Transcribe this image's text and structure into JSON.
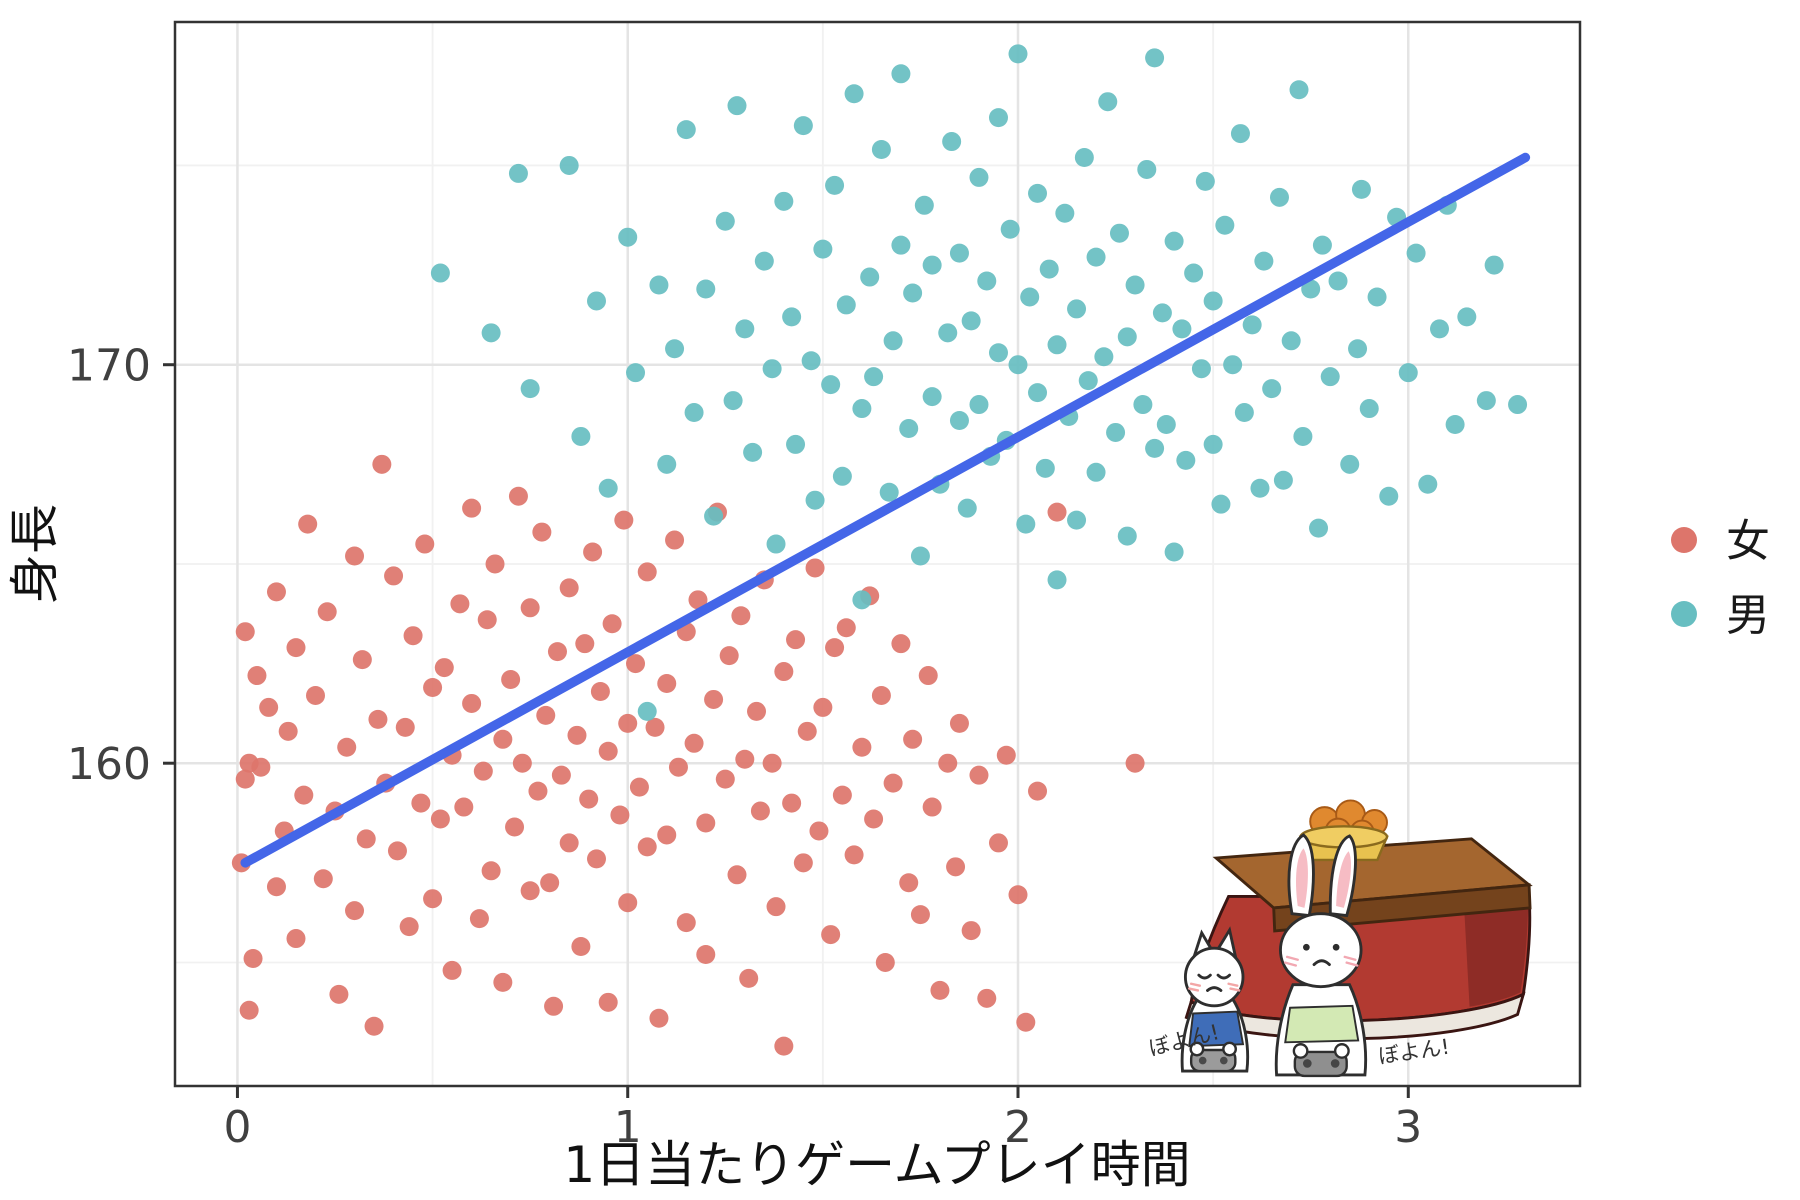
{
  "chart_data": {
    "type": "scatter",
    "title": "",
    "xlabel": "1日当たりゲームプレイ時間",
    "ylabel": "身長",
    "xlim": [
      -0.16,
      3.44
    ],
    "ylim": [
      151.9,
      178.6
    ],
    "x_ticks": [
      0,
      1,
      2,
      3
    ],
    "y_ticks": [
      160,
      170
    ],
    "x_minor_ticks": [
      0.5,
      1.5,
      2.5
    ],
    "y_minor_ticks": [
      155,
      165,
      175
    ],
    "grid": true,
    "point_radius": 9.5,
    "panel": {
      "background": "#ffffff",
      "border_color": "#333333",
      "grid_major_color": "#e4e4e4",
      "grid_minor_color": "#f1f1f1",
      "axis_text_color": "#404040"
    },
    "legend": {
      "position": "right",
      "entries": [
        {
          "label": "女",
          "color": "#DD756B"
        },
        {
          "label": "男",
          "color": "#67BEC1"
        }
      ]
    },
    "regression_line": {
      "color": "#4466E8",
      "width": 9.5,
      "points": [
        [
          0.02,
          157.5
        ],
        [
          3.3,
          175.2
        ]
      ]
    },
    "series": [
      {
        "name": "女",
        "color": "#DD756B",
        "points": [
          [
            0.01,
            157.5
          ],
          [
            0.02,
            163.3
          ],
          [
            0.03,
            160.0
          ],
          [
            0.02,
            159.6
          ],
          [
            0.04,
            155.1
          ],
          [
            0.05,
            162.2
          ],
          [
            0.03,
            153.8
          ],
          [
            0.06,
            159.9
          ],
          [
            0.08,
            161.4
          ],
          [
            0.1,
            156.9
          ],
          [
            0.1,
            164.3
          ],
          [
            0.12,
            158.3
          ],
          [
            0.13,
            160.8
          ],
          [
            0.15,
            162.9
          ],
          [
            0.15,
            155.6
          ],
          [
            0.17,
            159.2
          ],
          [
            0.18,
            166.0
          ],
          [
            0.2,
            161.7
          ],
          [
            0.22,
            157.1
          ],
          [
            0.23,
            163.8
          ],
          [
            0.25,
            158.8
          ],
          [
            0.26,
            154.2
          ],
          [
            0.28,
            160.4
          ],
          [
            0.3,
            165.2
          ],
          [
            0.3,
            156.3
          ],
          [
            0.32,
            162.6
          ],
          [
            0.33,
            158.1
          ],
          [
            0.35,
            153.4
          ],
          [
            0.36,
            161.1
          ],
          [
            0.37,
            167.5
          ],
          [
            0.38,
            159.5
          ],
          [
            0.4,
            164.7
          ],
          [
            0.41,
            157.8
          ],
          [
            0.43,
            160.9
          ],
          [
            0.44,
            155.9
          ],
          [
            0.45,
            163.2
          ],
          [
            0.47,
            159.0
          ],
          [
            0.48,
            165.5
          ],
          [
            0.5,
            161.9
          ],
          [
            0.5,
            156.6
          ],
          [
            0.52,
            158.6
          ],
          [
            0.53,
            162.4
          ],
          [
            0.55,
            154.8
          ],
          [
            0.55,
            160.2
          ],
          [
            0.57,
            164.0
          ],
          [
            0.58,
            158.9
          ],
          [
            0.6,
            166.4
          ],
          [
            0.6,
            161.5
          ],
          [
            0.62,
            156.1
          ],
          [
            0.63,
            159.8
          ],
          [
            0.64,
            163.6
          ],
          [
            0.65,
            157.3
          ],
          [
            0.66,
            165.0
          ],
          [
            0.68,
            160.6
          ],
          [
            0.68,
            154.5
          ],
          [
            0.7,
            162.1
          ],
          [
            0.71,
            158.4
          ],
          [
            0.72,
            166.7
          ],
          [
            0.73,
            160.0
          ],
          [
            0.75,
            156.8
          ],
          [
            0.75,
            163.9
          ],
          [
            0.77,
            159.3
          ],
          [
            0.78,
            165.8
          ],
          [
            0.79,
            161.2
          ],
          [
            0.8,
            157.0
          ],
          [
            0.81,
            153.9
          ],
          [
            0.82,
            162.8
          ],
          [
            0.83,
            159.7
          ],
          [
            0.85,
            164.4
          ],
          [
            0.85,
            158.0
          ],
          [
            0.87,
            160.7
          ],
          [
            0.88,
            155.4
          ],
          [
            0.89,
            163.0
          ],
          [
            0.9,
            159.1
          ],
          [
            0.91,
            165.3
          ],
          [
            0.92,
            157.6
          ],
          [
            0.93,
            161.8
          ],
          [
            0.95,
            154.0
          ],
          [
            0.95,
            160.3
          ],
          [
            0.96,
            163.5
          ],
          [
            0.98,
            158.7
          ],
          [
            0.99,
            166.1
          ],
          [
            1.0,
            161.0
          ],
          [
            1.0,
            156.5
          ],
          [
            1.02,
            162.5
          ],
          [
            1.03,
            159.4
          ],
          [
            1.05,
            164.8
          ],
          [
            1.05,
            157.9
          ],
          [
            1.07,
            160.9
          ],
          [
            1.08,
            153.6
          ],
          [
            1.1,
            162.0
          ],
          [
            1.1,
            158.2
          ],
          [
            1.12,
            165.6
          ],
          [
            1.13,
            159.9
          ],
          [
            1.15,
            163.3
          ],
          [
            1.15,
            156.0
          ],
          [
            1.17,
            160.5
          ],
          [
            1.18,
            164.1
          ],
          [
            1.2,
            158.5
          ],
          [
            1.2,
            155.2
          ],
          [
            1.22,
            161.6
          ],
          [
            1.23,
            166.3
          ],
          [
            1.25,
            159.6
          ],
          [
            1.26,
            162.7
          ],
          [
            1.28,
            157.2
          ],
          [
            1.29,
            163.7
          ],
          [
            1.3,
            160.1
          ],
          [
            1.31,
            154.6
          ],
          [
            1.33,
            161.3
          ],
          [
            1.34,
            158.8
          ],
          [
            1.35,
            164.6
          ],
          [
            1.37,
            160.0
          ],
          [
            1.38,
            156.4
          ],
          [
            1.4,
            162.3
          ],
          [
            1.4,
            152.9
          ],
          [
            1.42,
            159.0
          ],
          [
            1.43,
            163.1
          ],
          [
            1.45,
            157.5
          ],
          [
            1.46,
            160.8
          ],
          [
            1.48,
            164.9
          ],
          [
            1.49,
            158.3
          ],
          [
            1.5,
            161.4
          ],
          [
            1.52,
            155.7
          ],
          [
            1.53,
            162.9
          ],
          [
            1.55,
            159.2
          ],
          [
            1.56,
            163.4
          ],
          [
            1.58,
            157.7
          ],
          [
            1.6,
            160.4
          ],
          [
            1.62,
            164.2
          ],
          [
            1.63,
            158.6
          ],
          [
            1.65,
            161.7
          ],
          [
            1.66,
            155.0
          ],
          [
            1.68,
            159.5
          ],
          [
            1.7,
            163.0
          ],
          [
            1.72,
            157.0
          ],
          [
            1.73,
            160.6
          ],
          [
            1.75,
            156.2
          ],
          [
            1.77,
            162.2
          ],
          [
            1.78,
            158.9
          ],
          [
            1.8,
            154.3
          ],
          [
            1.82,
            160.0
          ],
          [
            1.84,
            157.4
          ],
          [
            1.85,
            161.0
          ],
          [
            1.88,
            155.8
          ],
          [
            1.9,
            159.7
          ],
          [
            1.92,
            154.1
          ],
          [
            1.95,
            158.0
          ],
          [
            1.97,
            160.2
          ],
          [
            2.0,
            156.7
          ],
          [
            2.02,
            153.5
          ],
          [
            2.05,
            159.3
          ],
          [
            2.1,
            166.3
          ],
          [
            2.3,
            160.0
          ]
        ]
      },
      {
        "name": "男",
        "color": "#67BEC1",
        "points": [
          [
            0.52,
            172.3
          ],
          [
            0.65,
            170.8
          ],
          [
            0.72,
            174.8
          ],
          [
            0.75,
            169.4
          ],
          [
            0.85,
            175.0
          ],
          [
            0.88,
            168.2
          ],
          [
            0.92,
            171.6
          ],
          [
            0.95,
            166.9
          ],
          [
            1.0,
            173.2
          ],
          [
            1.02,
            169.8
          ],
          [
            1.05,
            161.3
          ],
          [
            1.08,
            172.0
          ],
          [
            1.1,
            167.5
          ],
          [
            1.12,
            170.4
          ],
          [
            1.15,
            175.9
          ],
          [
            1.17,
            168.8
          ],
          [
            1.2,
            171.9
          ],
          [
            1.22,
            166.2
          ],
          [
            1.25,
            173.6
          ],
          [
            1.27,
            169.1
          ],
          [
            1.28,
            176.5
          ],
          [
            1.3,
            170.9
          ],
          [
            1.32,
            167.8
          ],
          [
            1.35,
            172.6
          ],
          [
            1.37,
            169.9
          ],
          [
            1.38,
            165.5
          ],
          [
            1.4,
            174.1
          ],
          [
            1.42,
            171.2
          ],
          [
            1.43,
            168.0
          ],
          [
            1.45,
            176.0
          ],
          [
            1.47,
            170.1
          ],
          [
            1.48,
            166.6
          ],
          [
            1.5,
            172.9
          ],
          [
            1.52,
            169.5
          ],
          [
            1.53,
            174.5
          ],
          [
            1.55,
            167.2
          ],
          [
            1.56,
            171.5
          ],
          [
            1.58,
            176.8
          ],
          [
            1.6,
            168.9
          ],
          [
            1.6,
            164.1
          ],
          [
            1.62,
            172.2
          ],
          [
            1.63,
            169.7
          ],
          [
            1.65,
            175.4
          ],
          [
            1.67,
            166.8
          ],
          [
            1.68,
            170.6
          ],
          [
            1.7,
            177.3
          ],
          [
            1.7,
            173.0
          ],
          [
            1.72,
            168.4
          ],
          [
            1.73,
            171.8
          ],
          [
            1.75,
            165.2
          ],
          [
            1.76,
            174.0
          ],
          [
            1.78,
            169.2
          ],
          [
            1.78,
            172.5
          ],
          [
            1.8,
            167.0
          ],
          [
            1.82,
            170.8
          ],
          [
            1.83,
            175.6
          ],
          [
            1.85,
            168.6
          ],
          [
            1.85,
            172.8
          ],
          [
            1.87,
            166.4
          ],
          [
            1.88,
            171.1
          ],
          [
            1.9,
            174.7
          ],
          [
            1.9,
            169.0
          ],
          [
            1.92,
            172.1
          ],
          [
            1.93,
            167.7
          ],
          [
            1.95,
            170.3
          ],
          [
            1.95,
            176.2
          ],
          [
            1.97,
            168.1
          ],
          [
            1.98,
            173.4
          ],
          [
            2.0,
            177.8
          ],
          [
            2.0,
            170.0
          ],
          [
            2.02,
            166.0
          ],
          [
            2.03,
            171.7
          ],
          [
            2.05,
            169.3
          ],
          [
            2.05,
            174.3
          ],
          [
            2.07,
            167.4
          ],
          [
            2.08,
            172.4
          ],
          [
            2.1,
            170.5
          ],
          [
            2.1,
            164.6
          ],
          [
            2.12,
            173.8
          ],
          [
            2.13,
            168.7
          ],
          [
            2.15,
            171.4
          ],
          [
            2.15,
            166.1
          ],
          [
            2.17,
            175.2
          ],
          [
            2.18,
            169.6
          ],
          [
            2.2,
            172.7
          ],
          [
            2.2,
            167.3
          ],
          [
            2.22,
            170.2
          ],
          [
            2.23,
            176.6
          ],
          [
            2.25,
            168.3
          ],
          [
            2.26,
            173.3
          ],
          [
            2.28,
            170.7
          ],
          [
            2.28,
            165.7
          ],
          [
            2.3,
            172.0
          ],
          [
            2.32,
            169.0
          ],
          [
            2.33,
            174.9
          ],
          [
            2.35,
            177.7
          ],
          [
            2.35,
            167.9
          ],
          [
            2.37,
            171.3
          ],
          [
            2.38,
            168.5
          ],
          [
            2.4,
            173.1
          ],
          [
            2.4,
            165.3
          ],
          [
            2.42,
            170.9
          ],
          [
            2.43,
            167.6
          ],
          [
            2.45,
            172.3
          ],
          [
            2.47,
            169.9
          ],
          [
            2.48,
            174.6
          ],
          [
            2.5,
            168.0
          ],
          [
            2.5,
            171.6
          ],
          [
            2.52,
            166.5
          ],
          [
            2.53,
            173.5
          ],
          [
            2.55,
            170.0
          ],
          [
            2.57,
            175.8
          ],
          [
            2.58,
            168.8
          ],
          [
            2.6,
            171.0
          ],
          [
            2.62,
            166.9
          ],
          [
            2.63,
            172.6
          ],
          [
            2.65,
            169.4
          ],
          [
            2.67,
            174.2
          ],
          [
            2.68,
            167.1
          ],
          [
            2.7,
            170.6
          ],
          [
            2.72,
            176.9
          ],
          [
            2.73,
            168.2
          ],
          [
            2.75,
            171.9
          ],
          [
            2.77,
            165.9
          ],
          [
            2.78,
            173.0
          ],
          [
            2.8,
            169.7
          ],
          [
            2.82,
            172.1
          ],
          [
            2.85,
            167.5
          ],
          [
            2.87,
            170.4
          ],
          [
            2.88,
            174.4
          ],
          [
            2.9,
            168.9
          ],
          [
            2.92,
            171.7
          ],
          [
            2.95,
            166.7
          ],
          [
            2.97,
            173.7
          ],
          [
            3.0,
            169.8
          ],
          [
            3.02,
            172.8
          ],
          [
            3.05,
            167.0
          ],
          [
            3.08,
            170.9
          ],
          [
            3.1,
            174.0
          ],
          [
            3.12,
            168.5
          ],
          [
            3.15,
            171.2
          ],
          [
            3.2,
            169.1
          ],
          [
            3.22,
            172.5
          ],
          [
            3.28,
            169.0
          ]
        ]
      }
    ]
  },
  "illustration": {
    "name": "kotatsu-rabbit-cat",
    "captions": [
      "ぼよん!",
      "ぼよん!"
    ]
  }
}
